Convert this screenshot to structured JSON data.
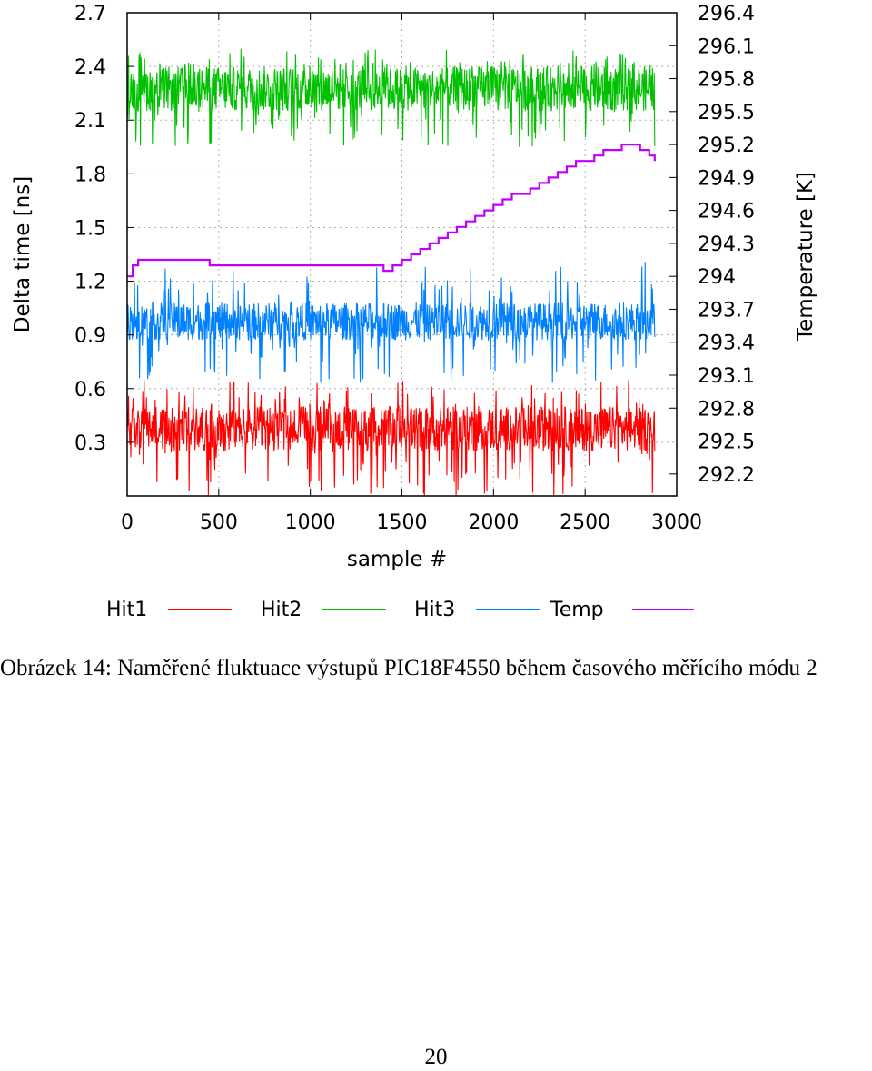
{
  "caption": "Obrázek 14: Naměřené fluktuace výstupů PIC18F4550 během časového měřícího módu 2",
  "page_number": "20",
  "chart_data": {
    "type": "line",
    "xlabel": "sample #",
    "ylabel": "Delta time [ns]",
    "y2label": "Temperature [K]",
    "xlim": [
      0,
      3000
    ],
    "ylim": [
      0.0,
      2.7
    ],
    "y2lim": [
      292.0,
      296.4
    ],
    "xticks": [
      "0",
      "500",
      "1000",
      "1500",
      "2000",
      "2500",
      "3000"
    ],
    "yticks": [
      "0.3",
      "0.6",
      "0.9",
      "1.2",
      "1.5",
      "1.8",
      "2.1",
      "2.4",
      "2.7"
    ],
    "y2ticks": [
      "292.2",
      "292.5",
      "292.8",
      "293.1",
      "293.4",
      "293.7",
      "294",
      "294.3",
      "294.6",
      "294.9",
      "295.2",
      "295.5",
      "295.8",
      "296.1",
      "296.4"
    ],
    "grid": true,
    "legend_position": "bottom",
    "series": [
      {
        "name": "Hit1",
        "axis": "left",
        "color": "#ff0000",
        "x_range": [
          0,
          2880
        ],
        "mean": 0.37,
        "band": [
          0.25,
          0.5
        ],
        "extremes": [
          0.0,
          0.65
        ]
      },
      {
        "name": "Hit2",
        "axis": "left",
        "color": "#00c000",
        "x_range": [
          0,
          2880
        ],
        "mean": 2.28,
        "band": [
          2.15,
          2.4
        ],
        "extremes": [
          1.95,
          2.5
        ]
      },
      {
        "name": "Hit3",
        "axis": "left",
        "color": "#0080ff",
        "x_range": [
          0,
          2880
        ],
        "mean": 0.98,
        "band": [
          0.87,
          1.08
        ],
        "extremes": [
          0.63,
          1.31
        ]
      },
      {
        "name": "Temp",
        "axis": "right",
        "color": "#c000ff",
        "x": [
          0,
          30,
          60,
          120,
          200,
          300,
          400,
          450,
          500,
          600,
          700,
          800,
          900,
          1000,
          1100,
          1200,
          1300,
          1350,
          1400,
          1450,
          1500,
          1550,
          1600,
          1650,
          1700,
          1750,
          1800,
          1850,
          1900,
          1950,
          2000,
          2050,
          2100,
          2150,
          2200,
          2250,
          2300,
          2350,
          2400,
          2450,
          2500,
          2550,
          2600,
          2650,
          2700,
          2750,
          2800,
          2850,
          2880
        ],
        "y": [
          294.0,
          294.1,
          294.15,
          294.15,
          294.15,
          294.15,
          294.15,
          294.1,
          294.1,
          294.1,
          294.1,
          294.1,
          294.1,
          294.1,
          294.1,
          294.1,
          294.1,
          294.1,
          294.05,
          294.1,
          294.15,
          294.2,
          294.25,
          294.3,
          294.35,
          294.4,
          294.45,
          294.5,
          294.55,
          294.6,
          294.65,
          294.7,
          294.75,
          294.75,
          294.8,
          294.85,
          294.9,
          294.95,
          295.0,
          295.05,
          295.05,
          295.1,
          295.15,
          295.15,
          295.2,
          295.2,
          295.15,
          295.1,
          295.05
        ]
      }
    ]
  }
}
